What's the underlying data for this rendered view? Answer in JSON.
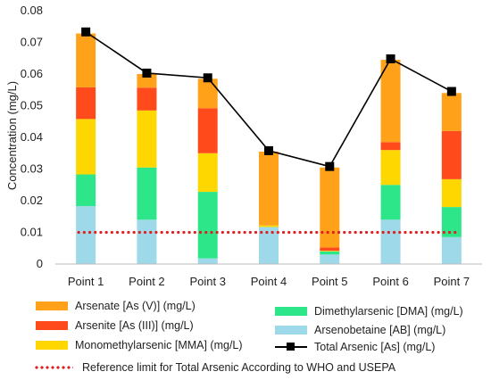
{
  "chart_data": {
    "type": "bar",
    "stacked": true,
    "ylabel": "Concentration (mg/L)",
    "ylim": [
      0,
      0.08
    ],
    "yticks": [
      "0",
      "0.01",
      "0.02",
      "0.03",
      "0.04",
      "0.05",
      "0.06",
      "0.07",
      "0.08"
    ],
    "categories": [
      "Point 1",
      "Point 2",
      "Point 3",
      "Point 4",
      "Point 5",
      "Point 6",
      "Point 7"
    ],
    "series": [
      {
        "name": "Arsenobetaine [AB] (mg/L)",
        "color": "#9dd9e8",
        "values": [
          0.0183,
          0.014,
          0.0018,
          0.0117,
          0.003,
          0.014,
          0.0085
        ]
      },
      {
        "name": "Dimethylarsenic [DMA] (mg/L)",
        "color": "#2ee68a",
        "values": [
          0.01,
          0.0165,
          0.021,
          0.0,
          0.001,
          0.011,
          0.0095
        ]
      },
      {
        "name": "Monomethylarsenic [MMA] (mg/L)",
        "color": "#ffd700",
        "values": [
          0.0175,
          0.018,
          0.0122,
          0.0005,
          0.0002,
          0.011,
          0.0088
        ]
      },
      {
        "name": "Arsenite [As (III)] (mg/L)",
        "color": "#ff4a1c",
        "values": [
          0.01,
          0.0072,
          0.0142,
          0.0,
          0.001,
          0.0025,
          0.0152
        ]
      },
      {
        "name": "Arsenate [As (V)] (mg/L)",
        "color": "#ffa21a",
        "values": [
          0.017,
          0.0043,
          0.0093,
          0.0233,
          0.0253,
          0.026,
          0.012
        ]
      }
    ],
    "line": {
      "name": "Total Arsenic [As] (mg/L)",
      "color": "#000000",
      "values": [
        0.0733,
        0.0603,
        0.0588,
        0.0358,
        0.0308,
        0.0648,
        0.0545
      ]
    },
    "reference": {
      "name": "Reference limit for Total Arsenic According to WHO and USEPA",
      "color": "#e02020",
      "value": 0.01
    },
    "grid": false,
    "legend": "bottom"
  },
  "legend": {
    "arsenate": "Arsenate [As (V)] (mg/L)",
    "arsenite": "Arsenite [As (III)] (mg/L)",
    "mma": "Monomethylarsenic [MMA] (mg/L)",
    "dma": "Dimethylarsenic [DMA] (mg/L)",
    "ab": "Arsenobetaine [AB] (mg/L)",
    "total": "Total Arsenic [As] (mg/L)",
    "reference": "Reference limit for Total Arsenic According to WHO and USEPA"
  }
}
